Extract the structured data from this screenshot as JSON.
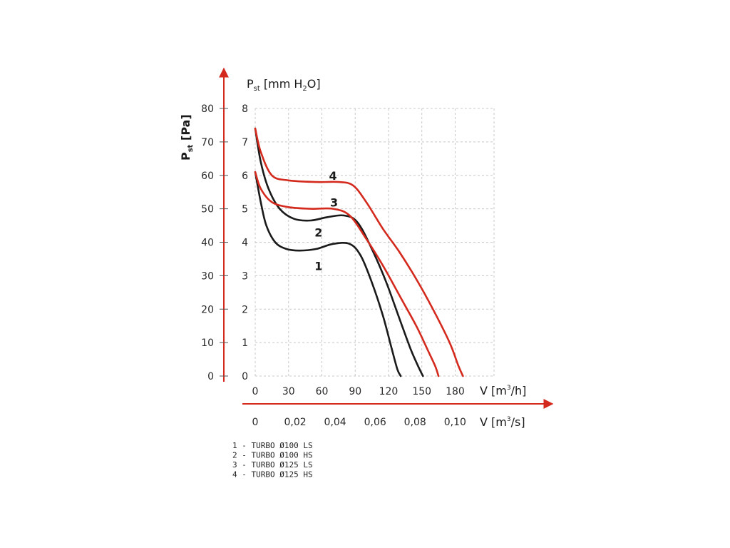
{
  "chart_data": {
    "type": "line",
    "y_left_label": {
      "main": "P",
      "sub": "st",
      "rest": " [Pa]"
    },
    "y_right_label": {
      "main": "P",
      "sub": "st",
      "rest": " [mm H",
      "sub2": "2",
      "rest2": "O]"
    },
    "x_top_label": {
      "main": "V [m",
      "sup": "3",
      "rest": "/h]"
    },
    "x_bottom_label": {
      "main": "V [m",
      "sup": "3",
      "rest": "/s]"
    },
    "y_pa_ticks": [
      "0",
      "10",
      "20",
      "30",
      "40",
      "50",
      "60",
      "70",
      "80"
    ],
    "y_mm_ticks": [
      "0",
      "1",
      "2",
      "3",
      "4",
      "5",
      "6",
      "7",
      "8"
    ],
    "x_m3h_ticks": [
      {
        "v": 0,
        "label": "0"
      },
      {
        "v": 30,
        "label": "30"
      },
      {
        "v": 60,
        "label": "60"
      },
      {
        "v": 90,
        "label": "90"
      },
      {
        "v": 120,
        "label": "120"
      },
      {
        "v": 150,
        "label": "150"
      },
      {
        "v": 180,
        "label": "180"
      }
    ],
    "x_m3s_ticks": [
      {
        "v": 0,
        "label": "0"
      },
      {
        "v": 0.02,
        "label": "0,02"
      },
      {
        "v": 0.04,
        "label": "0,04"
      },
      {
        "v": 0.06,
        "label": "0,06"
      },
      {
        "v": 0.08,
        "label": "0,08"
      },
      {
        "v": 0.1,
        "label": "0,10"
      }
    ],
    "xlim": [
      0,
      215
    ],
    "ylim": [
      0,
      80
    ],
    "grid": true,
    "series": [
      {
        "label": "1",
        "color": "#1a1a1a",
        "label_pos": [
          57,
          33
        ],
        "points": [
          [
            0,
            61
          ],
          [
            5,
            52
          ],
          [
            10,
            45
          ],
          [
            18,
            40
          ],
          [
            28,
            38
          ],
          [
            40,
            37.5
          ],
          [
            55,
            38
          ],
          [
            70,
            39.5
          ],
          [
            85,
            39.5
          ],
          [
            95,
            36
          ],
          [
            105,
            28
          ],
          [
            115,
            18
          ],
          [
            123,
            8
          ],
          [
            128,
            2
          ],
          [
            131,
            0
          ]
        ]
      },
      {
        "label": "2",
        "color": "#1a1a1a",
        "label_pos": [
          57,
          43
        ],
        "points": [
          [
            0,
            74
          ],
          [
            5,
            64
          ],
          [
            12,
            56
          ],
          [
            22,
            50
          ],
          [
            35,
            47
          ],
          [
            50,
            46.5
          ],
          [
            65,
            47.5
          ],
          [
            80,
            48
          ],
          [
            92,
            46
          ],
          [
            105,
            38
          ],
          [
            118,
            28
          ],
          [
            130,
            17
          ],
          [
            140,
            8
          ],
          [
            148,
            2
          ],
          [
            151,
            0
          ]
        ]
      },
      {
        "label": "3",
        "color": "#d42a1e",
        "label_pos": [
          71,
          52
        ],
        "points": [
          [
            0,
            61
          ],
          [
            5,
            56
          ],
          [
            15,
            52
          ],
          [
            30,
            50.5
          ],
          [
            50,
            50
          ],
          [
            70,
            50
          ],
          [
            85,
            48
          ],
          [
            100,
            41
          ],
          [
            115,
            33
          ],
          [
            130,
            24
          ],
          [
            145,
            15
          ],
          [
            155,
            8
          ],
          [
            162,
            3
          ],
          [
            165,
            0
          ]
        ]
      },
      {
        "label": "4",
        "color": "#d42a1e",
        "label_pos": [
          70,
          60
        ],
        "points": [
          [
            0,
            74
          ],
          [
            5,
            67
          ],
          [
            15,
            60
          ],
          [
            30,
            58.5
          ],
          [
            55,
            58
          ],
          [
            75,
            58
          ],
          [
            88,
            57
          ],
          [
            100,
            52
          ],
          [
            115,
            44
          ],
          [
            130,
            37
          ],
          [
            145,
            29
          ],
          [
            160,
            20
          ],
          [
            175,
            10
          ],
          [
            183,
            3
          ],
          [
            187,
            0
          ]
        ]
      }
    ]
  },
  "legend": [
    "1 - TURBO Ø100 LS",
    "2 - TURBO Ø100 HS",
    "3 - TURBO Ø125 LS",
    "4 - TURBO Ø125 HS"
  ]
}
